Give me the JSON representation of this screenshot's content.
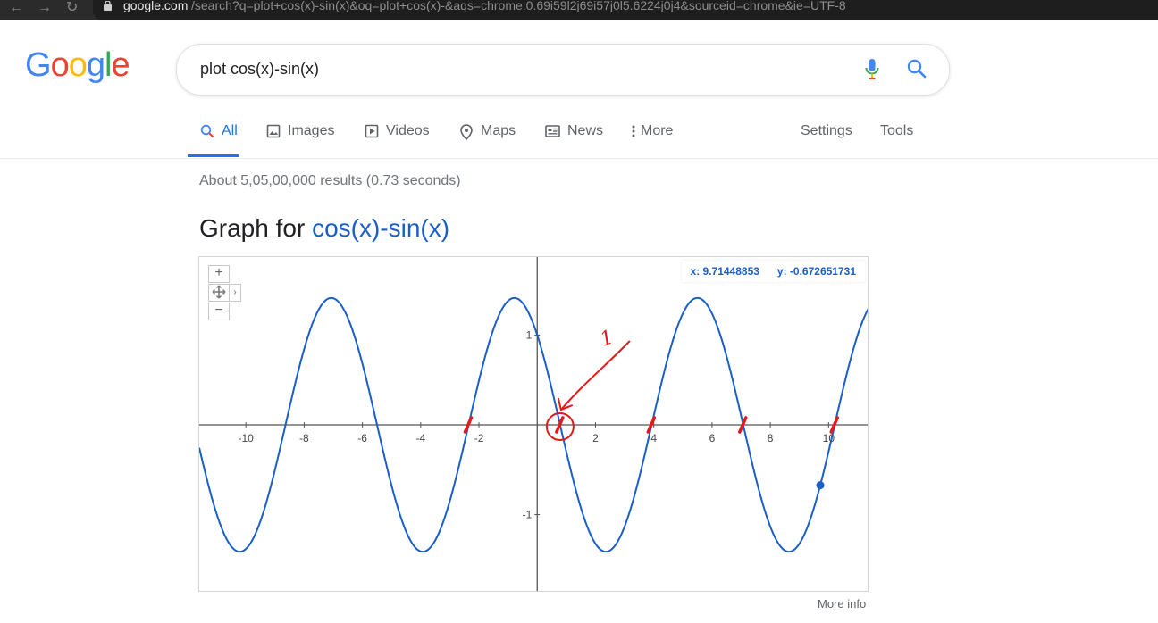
{
  "browser": {
    "url_host": "google.com",
    "url_rest": "/search?q=plot+cos(x)-sin(x)&oq=plot+cos(x)-&aqs=chrome.0.69i59l2j69i57j0l5.6224j0j4&sourceid=chrome&ie=UTF-8"
  },
  "header": {
    "logo_letters": [
      "G",
      "o",
      "o",
      "g",
      "l",
      "e"
    ],
    "logo_colors": [
      "#4285F4",
      "#EA4335",
      "#FBBC05",
      "#4285F4",
      "#34A853",
      "#EA4335"
    ],
    "search_value": "plot cos(x)-sin(x)"
  },
  "tabs": [
    {
      "label": "All",
      "icon": "search-icon",
      "active": true
    },
    {
      "label": "Images",
      "icon": "image-icon"
    },
    {
      "label": "Videos",
      "icon": "play-icon"
    },
    {
      "label": "Maps",
      "icon": "map-pin-icon"
    },
    {
      "label": "News",
      "icon": "news-icon"
    },
    {
      "label": "More",
      "icon": "more-vertical-icon"
    }
  ],
  "tools": {
    "settings": "Settings",
    "tools": "Tools"
  },
  "result_stats": "About 5,05,00,000 results (0.73 seconds)",
  "graph": {
    "heading_prefix": "Graph for",
    "heading_function": "cos(x)-sin(x)",
    "readout_x": "x: 9.71448853",
    "readout_y": "y: -0.672651731",
    "more_info": "More info",
    "accent_color": "#1a5fc7",
    "annotation_label": "1"
  },
  "chart_data": {
    "type": "line",
    "function": "cos(x)-sin(x)",
    "xlim": [
      -11.6,
      11.4
    ],
    "ylim": [
      -1.87,
      1.87
    ],
    "x_ticks": [
      -10,
      -8,
      -6,
      -4,
      -2,
      2,
      4,
      6,
      8,
      10
    ],
    "y_ticks": [
      1,
      -1
    ],
    "grid": false,
    "highlight_point": {
      "x": 9.71448853,
      "y": -0.672651731
    },
    "annotated_zeros_x": [
      -2.356,
      0.785,
      3.927,
      7.069,
      10.21
    ]
  }
}
